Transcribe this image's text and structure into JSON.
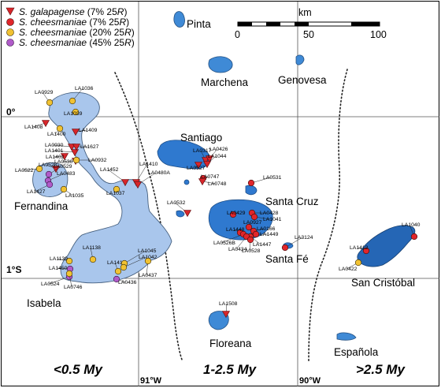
{
  "legend": [
    {
      "symbol": "triangle",
      "color": "#d7262b",
      "species": "S. galapagense",
      "pct": "(7% 25",
      "tail": ")"
    },
    {
      "symbol": "circle",
      "color": "#e0262b",
      "species": "S. cheesmaniae",
      "pct": "(7% 25",
      "tail": ")"
    },
    {
      "symbol": "circle",
      "color": "#f1c232",
      "species": "S. cheesmaniae",
      "pct": "(20% 25",
      "tail": ")"
    },
    {
      "symbol": "circle",
      "color": "#b05bc9",
      "species": "S. cheesmaniae",
      "pct": "(45% 25",
      "tail": ")"
    }
  ],
  "legend_r": "R",
  "scale": {
    "unit": "km",
    "ticks": [
      "0",
      "50",
      "100"
    ]
  },
  "coords": {
    "lat0": "0°",
    "lat1": "1°S",
    "lon91": "91°W",
    "lon90": "90°W"
  },
  "islands": {
    "pinta": "Pinta",
    "marchena": "Marchena",
    "genovesa": "Genovesa",
    "santiago": "Santiago",
    "fernandina": "Fernandina",
    "santa_cruz": "Santa Cruz",
    "santa_fe": "Santa Fé",
    "san_cristobal": "San Cristóbal",
    "isabela": "Isabela",
    "floreana": "Floreana",
    "espanola": "Española"
  },
  "ages": {
    "west": "<0.5 My",
    "middle": "1-2.5 My",
    "east": ">2.5 My"
  },
  "sites": [
    {
      "id": "LA0929",
      "type": "yellow"
    },
    {
      "id": "LA1036",
      "type": "yellow"
    },
    {
      "id": "LA1039",
      "type": "yellow"
    },
    {
      "id": "LA1408",
      "type": "triangle"
    },
    {
      "id": "LA1400",
      "type": "yellow"
    },
    {
      "id": "LA1409",
      "type": "triangle"
    },
    {
      "id": "LA0930",
      "type": "triangle"
    },
    {
      "id": "LA1401",
      "type": "triangle"
    },
    {
      "id": "LA1627",
      "type": "triangle"
    },
    {
      "id": "LA1402",
      "type": "triangle"
    },
    {
      "id": "LA0530",
      "type": "triangle"
    },
    {
      "id": "LA0932",
      "type": "yellow"
    },
    {
      "id": "LA0522",
      "type": "yellow"
    },
    {
      "id": "LA0528",
      "type": "triangle"
    },
    {
      "id": "LA0529",
      "type": "purple"
    },
    {
      "id": "LA0483",
      "type": "purple"
    },
    {
      "id": "LA1427",
      "type": "purple"
    },
    {
      "id": "LA1035",
      "type": "yellow"
    },
    {
      "id": "LA1452",
      "type": "triangle"
    },
    {
      "id": "LA1410",
      "type": "triangle"
    },
    {
      "id": "LA0480A",
      "type": "triangle"
    },
    {
      "id": "LA1037",
      "type": "yellow"
    },
    {
      "id": "LA0317",
      "type": "triangle"
    },
    {
      "id": "LA0426",
      "type": "triangle"
    },
    {
      "id": "LA1044",
      "type": "triangle"
    },
    {
      "id": "LA0527",
      "type": "triangle"
    },
    {
      "id": "LA0747",
      "type": "red"
    },
    {
      "id": "LA0748",
      "type": "triangle"
    },
    {
      "id": "LA0531",
      "type": "red"
    },
    {
      "id": "LA0532",
      "type": "triangle"
    },
    {
      "id": "LA0429",
      "type": "red"
    },
    {
      "id": "LA0428",
      "type": "red"
    },
    {
      "id": "LA1041",
      "type": "red"
    },
    {
      "id": "LA0927",
      "type": "red"
    },
    {
      "id": "LA0166",
      "type": "red"
    },
    {
      "id": "LA1448",
      "type": "red"
    },
    {
      "id": "LA1449",
      "type": "red"
    },
    {
      "id": "LA0526B",
      "type": "red"
    },
    {
      "id": "LA1447",
      "type": "red"
    },
    {
      "id": "LA0434",
      "type": "red"
    },
    {
      "id": "LA0528",
      "type": "red"
    },
    {
      "id": "LA3124",
      "type": "red"
    },
    {
      "id": "LA1040",
      "type": "red"
    },
    {
      "id": "LA1412",
      "type": "red"
    },
    {
      "id": "LA0422",
      "type": "yellow"
    },
    {
      "id": "LA1138",
      "type": "yellow"
    },
    {
      "id": "LA1414",
      "type": "yellow"
    },
    {
      "id": "LA1045",
      "type": "yellow"
    },
    {
      "id": "LA1042",
      "type": "yellow"
    },
    {
      "id": "LA0437",
      "type": "yellow"
    },
    {
      "id": "LA0436",
      "type": "purple"
    },
    {
      "id": "LA1139",
      "type": "yellow"
    },
    {
      "id": "LA1450",
      "type": "purple"
    },
    {
      "id": "LA0524",
      "type": "purple"
    },
    {
      "id": "LA0746",
      "type": "yellow"
    },
    {
      "id": "LA1508",
      "type": "triangle"
    }
  ]
}
